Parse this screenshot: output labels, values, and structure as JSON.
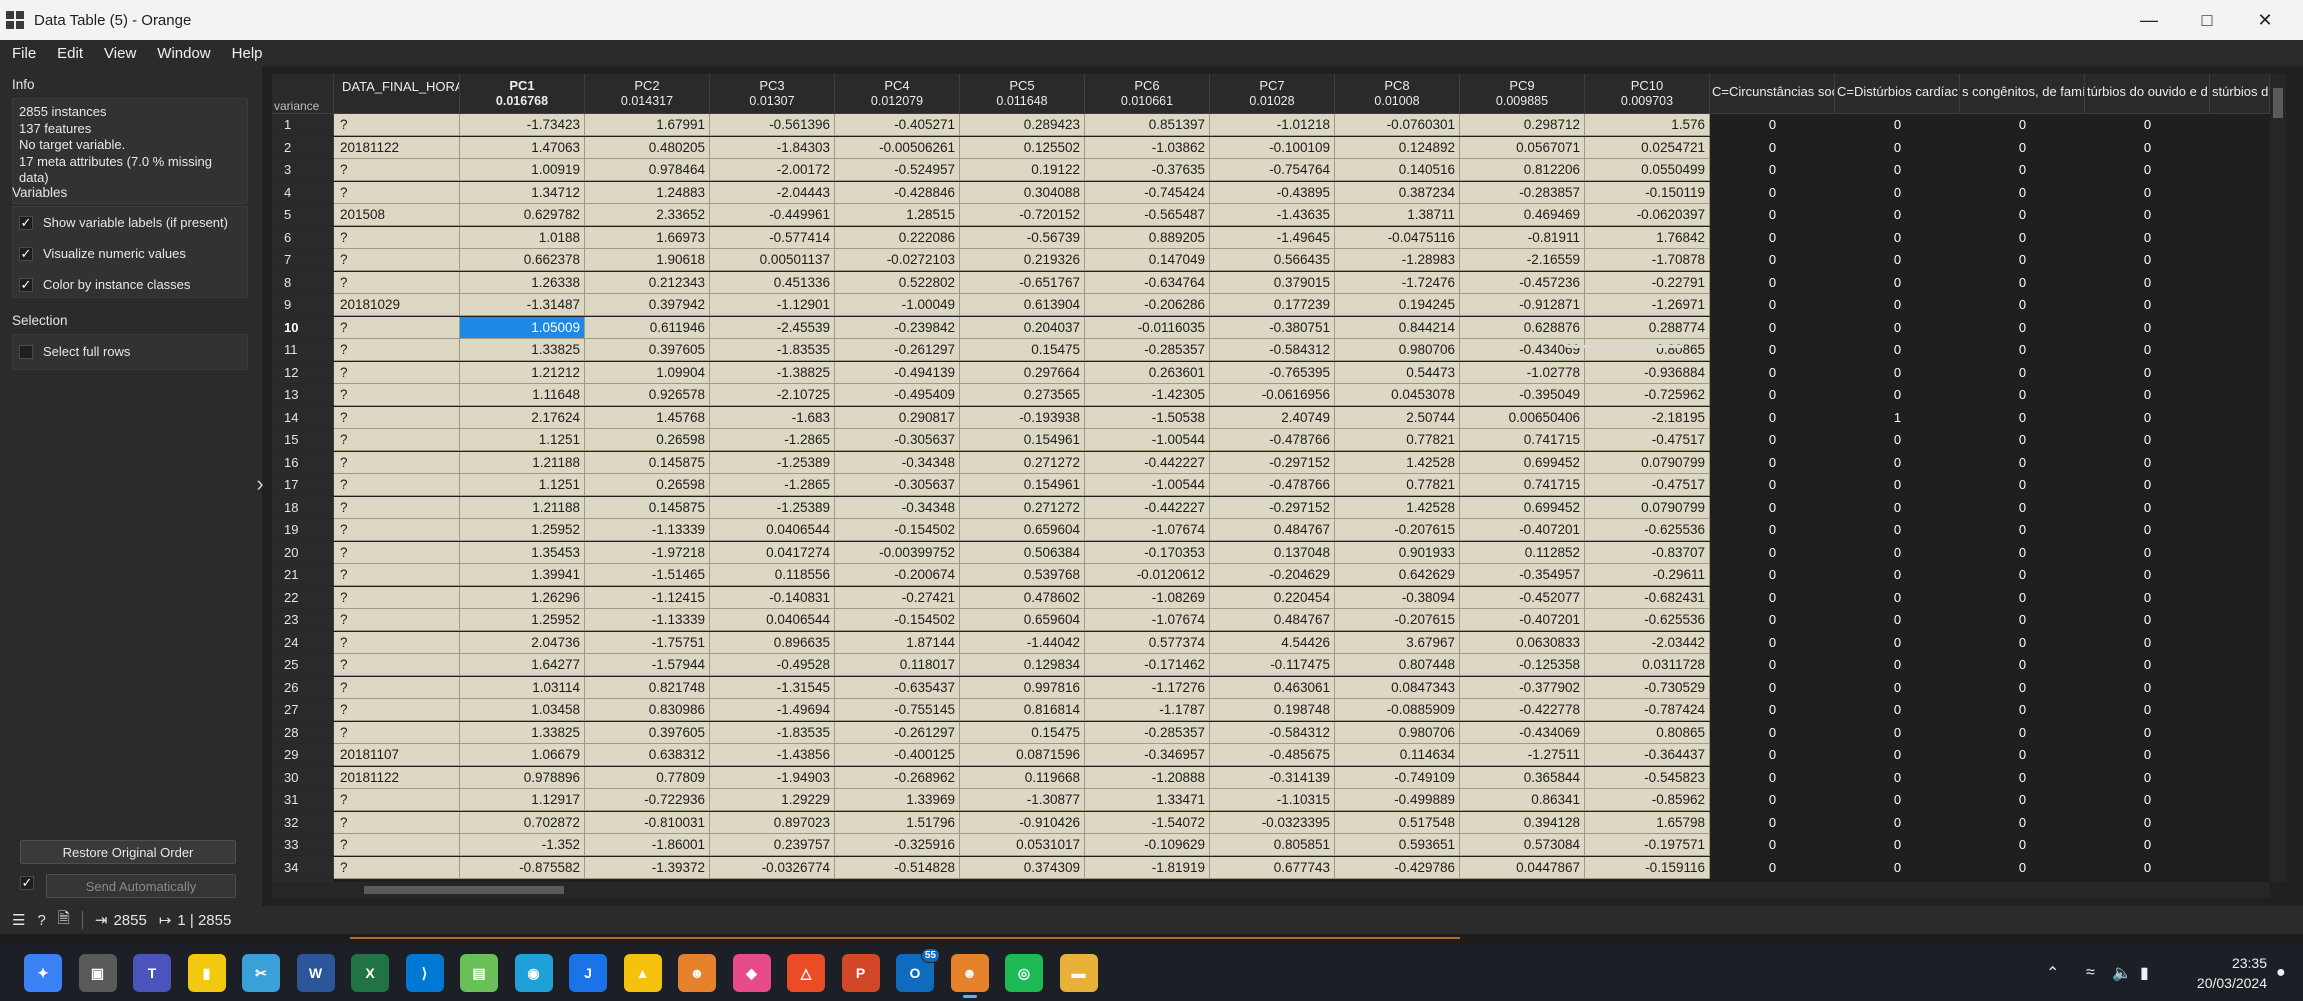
{
  "window": {
    "title": "Data Table (5) - Orange",
    "controls": [
      "minimize",
      "maximize",
      "close"
    ]
  },
  "menu": [
    "File",
    "Edit",
    "View",
    "Window",
    "Help"
  ],
  "info": {
    "title": "Info",
    "lines": [
      "2855 instances",
      "137  features",
      "No target variable.",
      "17 meta attributes (7.0 % missing data)"
    ]
  },
  "variables": {
    "title": "Variables",
    "options": [
      {
        "label": "Show variable labels (if present)",
        "checked": true
      },
      {
        "label": "Visualize numeric values",
        "checked": true
      },
      {
        "label": "Color by instance classes",
        "checked": true
      }
    ]
  },
  "selection": {
    "title": "Selection",
    "select_full_rows": {
      "label": "Select full rows",
      "checked": false
    }
  },
  "buttons": {
    "restore": "Restore Original Order",
    "send": "Send Automatically",
    "send_checked": true
  },
  "table": {
    "corner_label": "variance",
    "meta_header": "DATA_FINAL_HORA",
    "columns": [
      {
        "name": "PC1",
        "variance": "0.016768",
        "bold": true
      },
      {
        "name": "PC2",
        "variance": "0.014317"
      },
      {
        "name": "PC3",
        "variance": "0.01307"
      },
      {
        "name": "PC4",
        "variance": "0.012079"
      },
      {
        "name": "PC5",
        "variance": "0.011648"
      },
      {
        "name": "PC6",
        "variance": "0.010661"
      },
      {
        "name": "PC7",
        "variance": "0.01028"
      },
      {
        "name": "PC8",
        "variance": "0.01008"
      },
      {
        "name": "PC9",
        "variance": "0.009885"
      },
      {
        "name": "PC10",
        "variance": "0.009703"
      }
    ],
    "extra_headers": [
      "C=Circunstâncias soci",
      "C=Distúrbios cardíac",
      "s congênitos, de famí",
      "túrbios do ouvido e d",
      "stúrbios d"
    ],
    "selected": {
      "row": 10,
      "col": 0
    },
    "rows": [
      {
        "n": "1",
        "m": "?",
        "v": [
          "-1.73423",
          "1.67991",
          "-0.561396",
          "-0.405271",
          "0.289423",
          "0.851397",
          "-1.01218",
          "-0.0760301",
          "0.298712",
          "1.576"
        ],
        "e": [
          "0",
          "0",
          "0",
          "0"
        ]
      },
      {
        "n": "2",
        "m": "20181122",
        "v": [
          "1.47063",
          "0.480205",
          "-1.84303",
          "-0.00506261",
          "0.125502",
          "-1.03862",
          "-0.100109",
          "0.124892",
          "0.0567071",
          "0.0254721"
        ],
        "e": [
          "0",
          "0",
          "0",
          "0"
        ]
      },
      {
        "n": "3",
        "m": "?",
        "v": [
          "1.00919",
          "0.978464",
          "-2.00172",
          "-0.524957",
          "0.19122",
          "-0.37635",
          "-0.754764",
          "0.140516",
          "0.812206",
          "0.0550499"
        ],
        "e": [
          "0",
          "0",
          "0",
          "0"
        ]
      },
      {
        "n": "4",
        "m": "?",
        "v": [
          "1.34712",
          "1.24883",
          "-2.04443",
          "-0.428846",
          "0.304088",
          "-0.745424",
          "-0.43895",
          "0.387234",
          "-0.283857",
          "-0.150119"
        ],
        "e": [
          "0",
          "0",
          "0",
          "0"
        ]
      },
      {
        "n": "5",
        "m": "201508",
        "v": [
          "0.629782",
          "2.33652",
          "-0.449961",
          "1.28515",
          "-0.720152",
          "-0.565487",
          "-1.43635",
          "1.38711",
          "0.469469",
          "-0.0620397"
        ],
        "e": [
          "0",
          "0",
          "0",
          "0"
        ]
      },
      {
        "n": "6",
        "m": "?",
        "v": [
          "1.0188",
          "1.66973",
          "-0.577414",
          "0.222086",
          "-0.56739",
          "0.889205",
          "-1.49645",
          "-0.0475116",
          "-0.81911",
          "1.76842"
        ],
        "e": [
          "0",
          "0",
          "0",
          "0"
        ]
      },
      {
        "n": "7",
        "m": "?",
        "v": [
          "0.662378",
          "1.90618",
          "0.00501137",
          "-0.0272103",
          "0.219326",
          "0.147049",
          "0.566435",
          "-1.28983",
          "-2.16559",
          "-1.70878"
        ],
        "e": [
          "0",
          "0",
          "0",
          "0"
        ]
      },
      {
        "n": "8",
        "m": "?",
        "v": [
          "1.26338",
          "0.212343",
          "0.451336",
          "0.522802",
          "-0.651767",
          "-0.634764",
          "0.379015",
          "-1.72476",
          "-0.457236",
          "-0.22791"
        ],
        "e": [
          "0",
          "0",
          "0",
          "0"
        ]
      },
      {
        "n": "9",
        "m": "20181029",
        "v": [
          "-1.31487",
          "0.397942",
          "-1.12901",
          "-1.00049",
          "0.613904",
          "-0.206286",
          "0.177239",
          "0.194245",
          "-0.912871",
          "-1.26971"
        ],
        "e": [
          "0",
          "0",
          "0",
          "0"
        ]
      },
      {
        "n": "10",
        "m": "?",
        "v": [
          "1.05009",
          "0.611946",
          "-2.45539",
          "-0.239842",
          "0.204037",
          "-0.0116035",
          "-0.380751",
          "0.844214",
          "0.628876",
          "0.288774"
        ],
        "e": [
          "0",
          "0",
          "0",
          "0"
        ]
      },
      {
        "n": "11",
        "m": "?",
        "v": [
          "1.33825",
          "0.397605",
          "-1.83535",
          "-0.261297",
          "0.15475",
          "-0.285357",
          "-0.584312",
          "0.980706",
          "-0.434069",
          "0.80865"
        ],
        "e": [
          "0",
          "0",
          "0",
          "0"
        ]
      },
      {
        "n": "12",
        "m": "?",
        "v": [
          "1.21212",
          "1.09904",
          "-1.38825",
          "-0.494139",
          "0.297664",
          "0.263601",
          "-0.765395",
          "0.54473",
          "-1.02778",
          "-0.936884"
        ],
        "e": [
          "0",
          "0",
          "0",
          "0"
        ]
      },
      {
        "n": "13",
        "m": "?",
        "v": [
          "1.11648",
          "0.926578",
          "-2.10725",
          "-0.495409",
          "0.273565",
          "-1.42305",
          "-0.0616956",
          "0.0453078",
          "-0.395049",
          "-0.725962"
        ],
        "e": [
          "0",
          "0",
          "0",
          "0"
        ]
      },
      {
        "n": "14",
        "m": "?",
        "v": [
          "2.17624",
          "1.45768",
          "-1.683",
          "0.290817",
          "-0.193938",
          "-1.50538",
          "2.40749",
          "2.50744",
          "0.00650406",
          "-2.18195"
        ],
        "e": [
          "0",
          "1",
          "0",
          "0"
        ]
      },
      {
        "n": "15",
        "m": "?",
        "v": [
          "1.1251",
          "0.26598",
          "-1.2865",
          "-0.305637",
          "0.154961",
          "-1.00544",
          "-0.478766",
          "0.77821",
          "0.741715",
          "-0.47517"
        ],
        "e": [
          "0",
          "0",
          "0",
          "0"
        ]
      },
      {
        "n": "16",
        "m": "?",
        "v": [
          "1.21188",
          "0.145875",
          "-1.25389",
          "-0.34348",
          "0.271272",
          "-0.442227",
          "-0.297152",
          "1.42528",
          "0.699452",
          "0.0790799"
        ],
        "e": [
          "0",
          "0",
          "0",
          "0"
        ]
      },
      {
        "n": "17",
        "m": "?",
        "v": [
          "1.1251",
          "0.26598",
          "-1.2865",
          "-0.305637",
          "0.154961",
          "-1.00544",
          "-0.478766",
          "0.77821",
          "0.741715",
          "-0.47517"
        ],
        "e": [
          "0",
          "0",
          "0",
          "0"
        ]
      },
      {
        "n": "18",
        "m": "?",
        "v": [
          "1.21188",
          "0.145875",
          "-1.25389",
          "-0.34348",
          "0.271272",
          "-0.442227",
          "-0.297152",
          "1.42528",
          "0.699452",
          "0.0790799"
        ],
        "e": [
          "0",
          "0",
          "0",
          "0"
        ]
      },
      {
        "n": "19",
        "m": "?",
        "v": [
          "1.25952",
          "-1.13339",
          "0.0406544",
          "-0.154502",
          "0.659604",
          "-1.07674",
          "0.484767",
          "-0.207615",
          "-0.407201",
          "-0.625536"
        ],
        "e": [
          "0",
          "0",
          "0",
          "0"
        ]
      },
      {
        "n": "20",
        "m": "?",
        "v": [
          "1.35453",
          "-1.97218",
          "0.0417274",
          "-0.00399752",
          "0.506384",
          "-0.170353",
          "0.137048",
          "0.901933",
          "0.112852",
          "-0.83707"
        ],
        "e": [
          "0",
          "0",
          "0",
          "0"
        ]
      },
      {
        "n": "21",
        "m": "?",
        "v": [
          "1.39941",
          "-1.51465",
          "0.118556",
          "-0.200674",
          "0.539768",
          "-0.0120612",
          "-0.204629",
          "0.642629",
          "-0.354957",
          "-0.29611"
        ],
        "e": [
          "0",
          "0",
          "0",
          "0"
        ]
      },
      {
        "n": "22",
        "m": "?",
        "v": [
          "1.26296",
          "-1.12415",
          "-0.140831",
          "-0.27421",
          "0.478602",
          "-1.08269",
          "0.220454",
          "-0.38094",
          "-0.452077",
          "-0.682431"
        ],
        "e": [
          "0",
          "0",
          "0",
          "0"
        ]
      },
      {
        "n": "23",
        "m": "?",
        "v": [
          "1.25952",
          "-1.13339",
          "0.0406544",
          "-0.154502",
          "0.659604",
          "-1.07674",
          "0.484767",
          "-0.207615",
          "-0.407201",
          "-0.625536"
        ],
        "e": [
          "0",
          "0",
          "0",
          "0"
        ]
      },
      {
        "n": "24",
        "m": "?",
        "v": [
          "2.04736",
          "-1.75751",
          "0.896635",
          "1.87144",
          "-1.44042",
          "0.577374",
          "4.54426",
          "3.67967",
          "0.0630833",
          "-2.03442"
        ],
        "e": [
          "0",
          "0",
          "0",
          "0"
        ]
      },
      {
        "n": "25",
        "m": "?",
        "v": [
          "1.64277",
          "-1.57944",
          "-0.49528",
          "0.118017",
          "0.129834",
          "-0.171462",
          "-0.117475",
          "0.807448",
          "-0.125358",
          "0.0311728"
        ],
        "e": [
          "0",
          "0",
          "0",
          "0"
        ]
      },
      {
        "n": "26",
        "m": "?",
        "v": [
          "1.03114",
          "0.821748",
          "-1.31545",
          "-0.635437",
          "0.997816",
          "-1.17276",
          "0.463061",
          "0.0847343",
          "-0.377902",
          "-0.730529"
        ],
        "e": [
          "0",
          "0",
          "0",
          "0"
        ]
      },
      {
        "n": "27",
        "m": "?",
        "v": [
          "1.03458",
          "0.830986",
          "-1.49694",
          "-0.755145",
          "0.816814",
          "-1.1787",
          "0.198748",
          "-0.0885909",
          "-0.422778",
          "-0.787424"
        ],
        "e": [
          "0",
          "0",
          "0",
          "0"
        ]
      },
      {
        "n": "28",
        "m": "?",
        "v": [
          "1.33825",
          "0.397605",
          "-1.83535",
          "-0.261297",
          "0.15475",
          "-0.285357",
          "-0.584312",
          "0.980706",
          "-0.434069",
          "0.80865"
        ],
        "e": [
          "0",
          "0",
          "0",
          "0"
        ]
      },
      {
        "n": "29",
        "m": "20181107",
        "v": [
          "1.06679",
          "0.638312",
          "-1.43856",
          "-0.400125",
          "0.0871596",
          "-0.346957",
          "-0.485675",
          "0.114634",
          "-1.27511",
          "-0.364437"
        ],
        "e": [
          "0",
          "0",
          "0",
          "0"
        ]
      },
      {
        "n": "30",
        "m": "20181122",
        "v": [
          "0.978896",
          "0.77809",
          "-1.94903",
          "-0.268962",
          "0.119668",
          "-1.20888",
          "-0.314139",
          "-0.749109",
          "0.365844",
          "-0.545823"
        ],
        "e": [
          "0",
          "0",
          "0",
          "0"
        ]
      },
      {
        "n": "31",
        "m": "?",
        "v": [
          "1.12917",
          "-0.722936",
          "1.29229",
          "1.33969",
          "-1.30877",
          "1.33471",
          "-1.10315",
          "-0.499889",
          "0.86341",
          "-0.85962"
        ],
        "e": [
          "0",
          "0",
          "0",
          "0"
        ]
      },
      {
        "n": "32",
        "m": "?",
        "v": [
          "0.702872",
          "-0.810031",
          "0.897023",
          "1.51796",
          "-0.910426",
          "-1.54072",
          "-0.0323395",
          "0.517548",
          "0.394128",
          "1.65798"
        ],
        "e": [
          "0",
          "0",
          "0",
          "0"
        ]
      },
      {
        "n": "33",
        "m": "?",
        "v": [
          "-1.352",
          "-1.86001",
          "0.239757",
          "-0.325916",
          "0.0531017",
          "-0.109629",
          "0.805851",
          "0.593651",
          "0.573084",
          "-0.197571"
        ],
        "e": [
          "0",
          "0",
          "0",
          "0"
        ]
      },
      {
        "n": "34",
        "m": "?",
        "v": [
          "-0.875582",
          "-1.39372",
          "-0.0326774",
          "-0.514828",
          "0.374309",
          "-1.81919",
          "0.677743",
          "-0.429786",
          "0.0447867",
          "-0.159116"
        ],
        "e": [
          "0",
          "0",
          "0",
          "0"
        ]
      }
    ]
  },
  "statusbar": {
    "input_count": "2855",
    "output_count": "1 | 2855"
  },
  "taskbar": {
    "apps": [
      "copilot-icon",
      "file-explorer-icon",
      "teams-icon",
      "power-bi-icon",
      "snipping-tool-icon",
      "word-icon",
      "excel-icon",
      "vscode-icon",
      "notepad-icon",
      "edge-icon",
      "todo-icon",
      "aquarius-icon",
      "orange-icon",
      "paint-icon",
      "office-icon",
      "powerpoint-icon",
      "outlook-icon",
      "orange-active-icon",
      "spotify-icon",
      "folder-icon"
    ],
    "outlook_badge": "55",
    "time": "23:35",
    "date": "20/03/2024"
  },
  "colors": {
    "cell_background": "#ddd8c3",
    "selection": "#1e88e5",
    "panel": "#2b2b2b"
  }
}
